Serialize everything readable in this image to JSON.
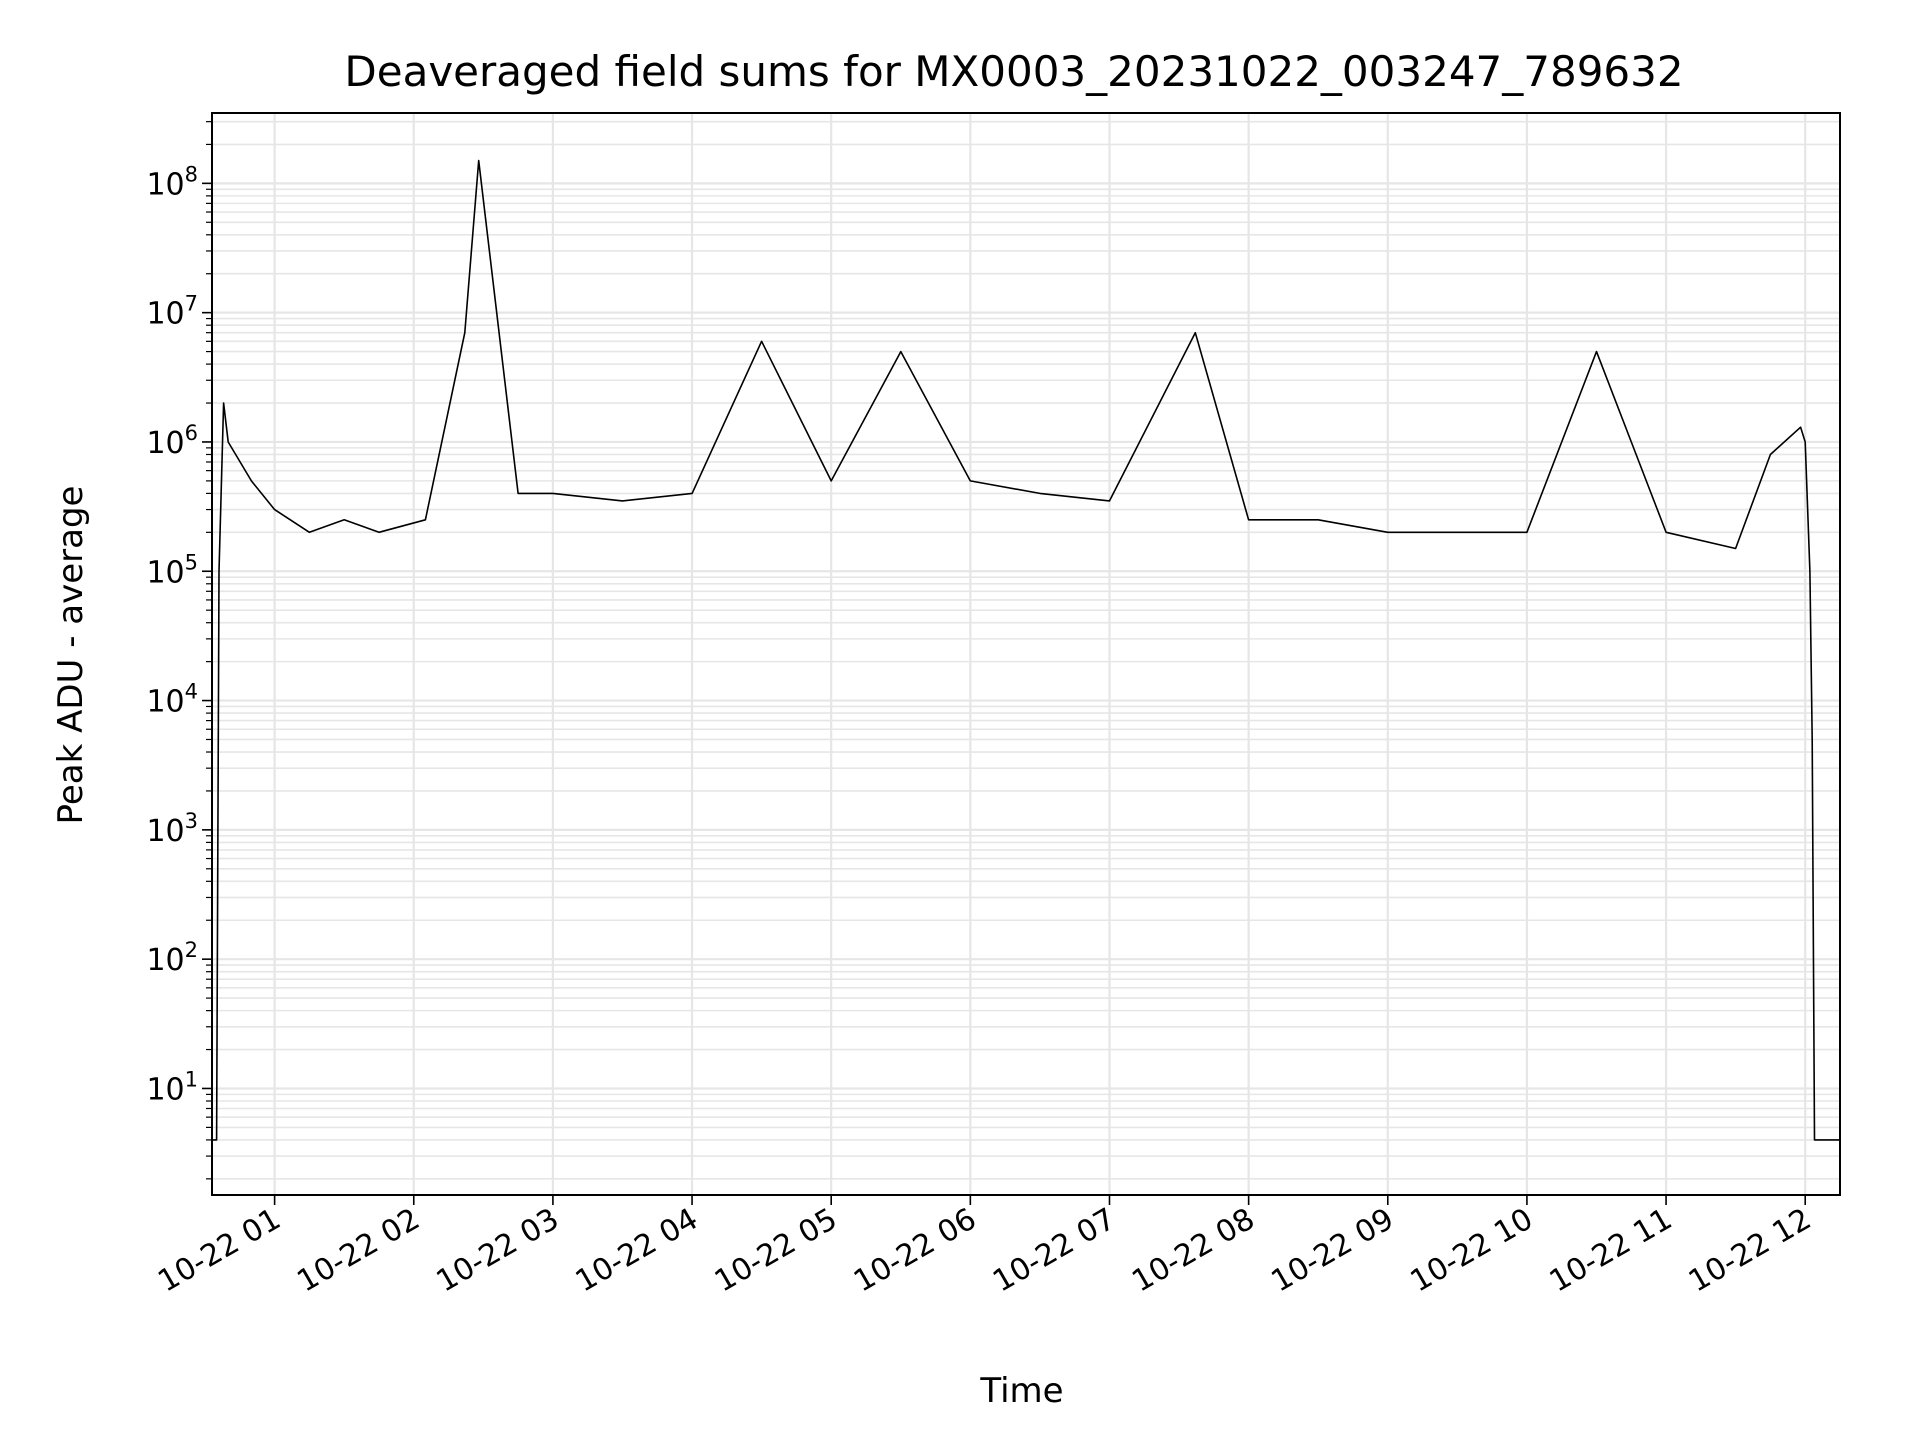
{
  "chart_data": {
    "type": "line",
    "title": "Deaveraged field sums for MX0003_20231022_003247_789632",
    "xlabel": "Time",
    "ylabel": "Peak ADU - average",
    "yscale": "log",
    "ylim": [
      1.5,
      350000000
    ],
    "xlim": [
      "2023-10-22 00:33",
      "2023-10-22 12:15"
    ],
    "grid": true,
    "x_ticks": [
      "10-22 01",
      "10-22 02",
      "10-22 03",
      "10-22 04",
      "10-22 05",
      "10-22 06",
      "10-22 07",
      "10-22 08",
      "10-22 09",
      "10-22 10",
      "10-22 11",
      "10-22 12"
    ],
    "y_ticks": [
      {
        "value": 10,
        "base": "10",
        "exp": "1"
      },
      {
        "value": 100,
        "base": "10",
        "exp": "2"
      },
      {
        "value": 1000,
        "base": "10",
        "exp": "3"
      },
      {
        "value": 10000,
        "base": "10",
        "exp": "4"
      },
      {
        "value": 100000,
        "base": "10",
        "exp": "5"
      },
      {
        "value": 1000000,
        "base": "10",
        "exp": "6"
      },
      {
        "value": 10000000,
        "base": "10",
        "exp": "7"
      },
      {
        "value": 100000000,
        "base": "10",
        "exp": "8"
      }
    ],
    "line_color": "#000000",
    "series": [
      {
        "values": [
          {
            "x": "2023-10-22 00:33",
            "y": 4
          },
          {
            "x": "2023-10-22 00:35",
            "y": 4
          },
          {
            "x": "2023-10-22 00:36",
            "y": 100000
          },
          {
            "x": "2023-10-22 00:38",
            "y": 2000000
          },
          {
            "x": "2023-10-22 00:40",
            "y": 1000000
          },
          {
            "x": "2023-10-22 00:50",
            "y": 500000
          },
          {
            "x": "2023-10-22 01:00",
            "y": 300000
          },
          {
            "x": "2023-10-22 01:15",
            "y": 200000
          },
          {
            "x": "2023-10-22 01:30",
            "y": 250000
          },
          {
            "x": "2023-10-22 01:45",
            "y": 200000
          },
          {
            "x": "2023-10-22 02:05",
            "y": 250000
          },
          {
            "x": "2023-10-22 02:22",
            "y": 7000000
          },
          {
            "x": "2023-10-22 02:28",
            "y": 150000000
          },
          {
            "x": "2023-10-22 02:45",
            "y": 400000
          },
          {
            "x": "2023-10-22 03:00",
            "y": 400000
          },
          {
            "x": "2023-10-22 03:30",
            "y": 350000
          },
          {
            "x": "2023-10-22 04:00",
            "y": 400000
          },
          {
            "x": "2023-10-22 04:30",
            "y": 6000000
          },
          {
            "x": "2023-10-22 05:00",
            "y": 500000
          },
          {
            "x": "2023-10-22 05:30",
            "y": 5000000
          },
          {
            "x": "2023-10-22 06:00",
            "y": 500000
          },
          {
            "x": "2023-10-22 06:30",
            "y": 400000
          },
          {
            "x": "2023-10-22 07:00",
            "y": 350000
          },
          {
            "x": "2023-10-22 07:37",
            "y": 7000000
          },
          {
            "x": "2023-10-22 08:00",
            "y": 250000
          },
          {
            "x": "2023-10-22 08:30",
            "y": 250000
          },
          {
            "x": "2023-10-22 09:00",
            "y": 200000
          },
          {
            "x": "2023-10-22 09:30",
            "y": 200000
          },
          {
            "x": "2023-10-22 10:00",
            "y": 200000
          },
          {
            "x": "2023-10-22 10:30",
            "y": 5000000
          },
          {
            "x": "2023-10-22 11:00",
            "y": 200000
          },
          {
            "x": "2023-10-22 11:30",
            "y": 150000
          },
          {
            "x": "2023-10-22 11:45",
            "y": 800000
          },
          {
            "x": "2023-10-22 11:58",
            "y": 1300000
          },
          {
            "x": "2023-10-22 12:00",
            "y": 1000000
          },
          {
            "x": "2023-10-22 12:02",
            "y": 100000
          },
          {
            "x": "2023-10-22 12:03",
            "y": 5000
          },
          {
            "x": "2023-10-22 12:04",
            "y": 4
          },
          {
            "x": "2023-10-22 12:15",
            "y": 4
          }
        ]
      }
    ]
  }
}
